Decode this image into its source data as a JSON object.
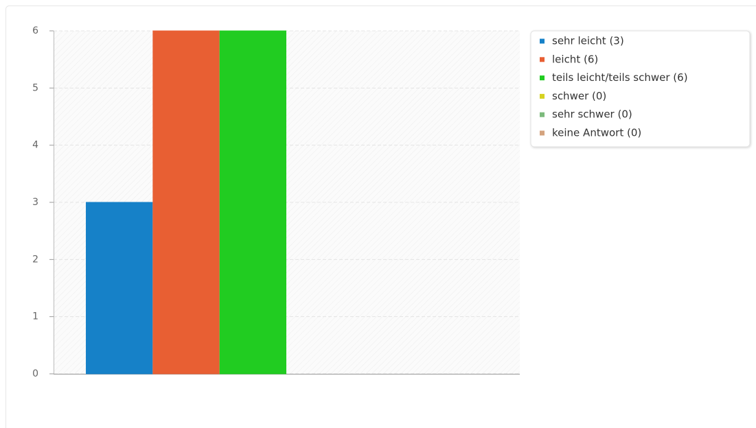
{
  "chart_data": {
    "type": "bar",
    "categories": [
      null
    ],
    "series": [
      {
        "name": "sehr leicht (3)",
        "color": "#1681c8",
        "values": [
          3
        ]
      },
      {
        "name": "leicht (6)",
        "color": "#e85f33",
        "values": [
          6
        ]
      },
      {
        "name": "teils leicht/teils schwer (6)",
        "color": "#21cc21",
        "values": [
          6
        ]
      },
      {
        "name": "schwer (0)",
        "color": "#d6d220",
        "values": [
          0
        ]
      },
      {
        "name": "sehr schwer (0)",
        "color": "#7cba7c",
        "values": [
          0
        ]
      },
      {
        "name": "keine Antwort (0)",
        "color": "#d4a37e",
        "values": [
          0
        ]
      }
    ],
    "ylim": [
      0,
      6
    ],
    "yticks": [
      0,
      1,
      2,
      3,
      4,
      5,
      6
    ],
    "grid": true,
    "legend": "right"
  }
}
